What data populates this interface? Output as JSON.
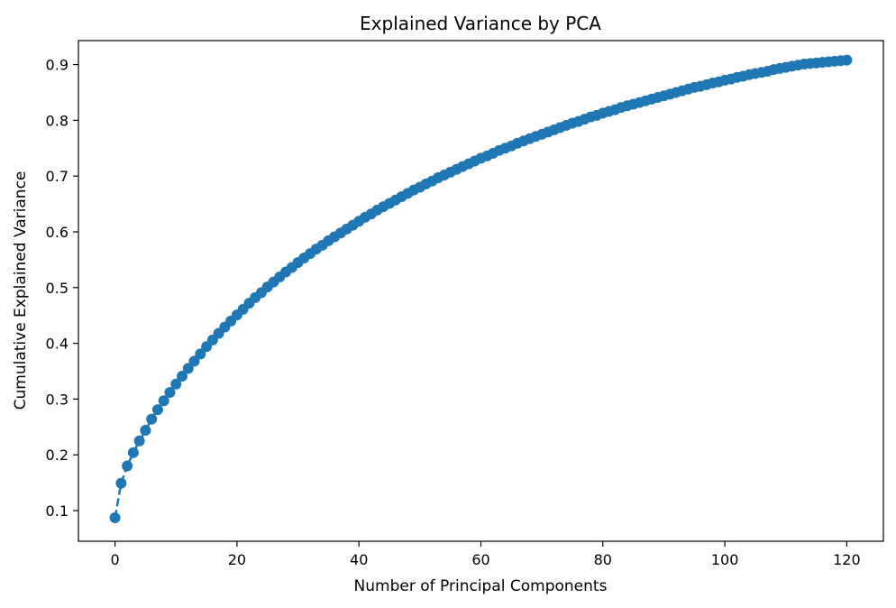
{
  "chart_data": {
    "type": "line",
    "title": "Explained Variance by PCA",
    "xlabel": "Number of Principal Components",
    "ylabel": "Cumulative Explained Variance",
    "xlim": [
      -6,
      126
    ],
    "ylim": [
      0.045,
      0.943
    ],
    "x_ticks": [
      0,
      20,
      40,
      60,
      80,
      100,
      120
    ],
    "x_tick_labels": [
      "0",
      "20",
      "40",
      "60",
      "80",
      "100",
      "120"
    ],
    "y_ticks": [
      0.1,
      0.2,
      0.3,
      0.4,
      0.5,
      0.6,
      0.7,
      0.8,
      0.9
    ],
    "y_tick_labels": [
      "0.1",
      "0.2",
      "0.3",
      "0.4",
      "0.5",
      "0.6",
      "0.7",
      "0.8",
      "0.9"
    ],
    "grid": false,
    "line_style": "dashed",
    "marker": "circle",
    "colors": {
      "series": "#1f77b4",
      "axes": "#000000"
    },
    "series": [
      {
        "x": [
          0,
          1,
          2,
          3,
          4,
          5,
          6,
          7,
          8,
          9,
          10,
          11,
          12,
          13,
          14,
          15,
          16,
          17,
          18,
          19,
          20,
          21,
          22,
          23,
          24,
          25,
          26,
          27,
          28,
          29,
          30,
          31,
          32,
          33,
          34,
          35,
          36,
          37,
          38,
          39,
          40,
          41,
          42,
          43,
          44,
          45,
          46,
          47,
          48,
          49,
          50,
          51,
          52,
          53,
          54,
          55,
          56,
          57,
          58,
          59,
          60,
          61,
          62,
          63,
          64,
          65,
          66,
          67,
          68,
          69,
          70,
          71,
          72,
          73,
          74,
          75,
          76,
          77,
          78,
          79,
          80,
          81,
          82,
          83,
          84,
          85,
          86,
          87,
          88,
          89,
          90,
          91,
          92,
          93,
          94,
          95,
          96,
          97,
          98,
          99,
          100,
          101,
          102,
          103,
          104,
          105,
          106,
          107,
          108,
          109,
          110,
          111,
          112,
          113,
          114,
          115,
          116,
          117,
          118,
          119,
          120
        ],
        "y": [
          0.087,
          0.149,
          0.18,
          0.204,
          0.225,
          0.244,
          0.264,
          0.281,
          0.297,
          0.312,
          0.327,
          0.341,
          0.355,
          0.368,
          0.381,
          0.394,
          0.406,
          0.418,
          0.429,
          0.44,
          0.451,
          0.461,
          0.472,
          0.482,
          0.491,
          0.501,
          0.51,
          0.519,
          0.528,
          0.536,
          0.545,
          0.553,
          0.561,
          0.569,
          0.576,
          0.584,
          0.591,
          0.598,
          0.605,
          0.612,
          0.619,
          0.626,
          0.632,
          0.639,
          0.645,
          0.651,
          0.657,
          0.663,
          0.669,
          0.675,
          0.68,
          0.686,
          0.691,
          0.697,
          0.702,
          0.707,
          0.712,
          0.717,
          0.722,
          0.727,
          0.732,
          0.736,
          0.741,
          0.746,
          0.75,
          0.754,
          0.759,
          0.763,
          0.767,
          0.771,
          0.775,
          0.779,
          0.783,
          0.787,
          0.791,
          0.795,
          0.798,
          0.802,
          0.806,
          0.809,
          0.813,
          0.816,
          0.819,
          0.823,
          0.826,
          0.829,
          0.832,
          0.835,
          0.838,
          0.841,
          0.844,
          0.847,
          0.85,
          0.853,
          0.856,
          0.859,
          0.861,
          0.864,
          0.867,
          0.869,
          0.872,
          0.874,
          0.877,
          0.879,
          0.882,
          0.884,
          0.886,
          0.888,
          0.891,
          0.893,
          0.895,
          0.897,
          0.899,
          0.901,
          0.902,
          0.903,
          0.904,
          0.905,
          0.906,
          0.907,
          0.908
        ]
      }
    ]
  }
}
